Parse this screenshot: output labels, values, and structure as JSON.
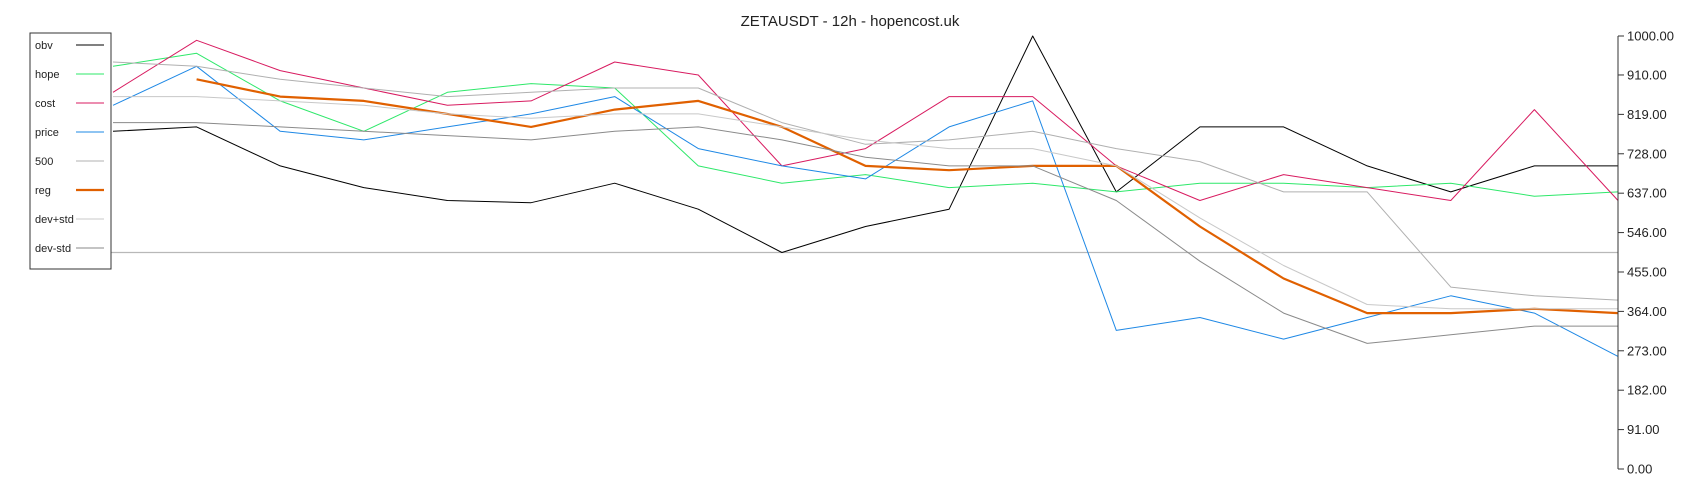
{
  "chart_data": {
    "type": "line",
    "title": "ZETAUSDT - 12h - hopencost.uk",
    "xlabel": "",
    "ylabel": "",
    "ylim": [
      0,
      1000
    ],
    "y_ticks": [
      "0.00",
      "91.00",
      "182.00",
      "273.00",
      "364.00",
      "455.00",
      "546.00",
      "637.00",
      "728.00",
      "819.00",
      "910.00",
      "1000.00"
    ],
    "y_tick_values": [
      0,
      91,
      182,
      273,
      364,
      455,
      546,
      637,
      728,
      819,
      910,
      1000
    ],
    "x": [
      0,
      20,
      40,
      60,
      80,
      100,
      120,
      140,
      160,
      180,
      200,
      220,
      240,
      260,
      280,
      300,
      320,
      340,
      360
    ],
    "horizontal_line": 500,
    "grid": false,
    "legend_position": "top-left",
    "series": [
      {
        "name": "obv",
        "color": "#000000",
        "width": 1.0,
        "values": [
          780,
          790,
          700,
          650,
          620,
          615,
          660,
          600,
          500,
          560,
          600,
          1000,
          640,
          790,
          790,
          700,
          640,
          700,
          700
        ]
      },
      {
        "name": "hope",
        "color": "#2ee86a",
        "width": 1.0,
        "values": [
          930,
          960,
          850,
          780,
          870,
          890,
          880,
          700,
          660,
          680,
          650,
          660,
          640,
          660,
          660,
          650,
          660,
          630,
          640
        ]
      },
      {
        "name": "cost",
        "color": "#d81b60",
        "width": 1.0,
        "values": [
          870,
          990,
          920,
          880,
          840,
          850,
          940,
          910,
          700,
          740,
          860,
          860,
          700,
          620,
          680,
          650,
          620,
          830,
          620
        ]
      },
      {
        "name": "price",
        "color": "#1e88e5",
        "width": 1.0,
        "values": [
          840,
          930,
          780,
          760,
          790,
          820,
          860,
          740,
          700,
          670,
          790,
          850,
          320,
          350,
          300,
          350,
          400,
          360,
          260
        ]
      },
      {
        "name": "500",
        "color": "#b0b0b0",
        "width": 1.0,
        "values": [
          940,
          930,
          900,
          880,
          860,
          870,
          880,
          880,
          800,
          750,
          760,
          780,
          740,
          710,
          640,
          640,
          420,
          400,
          390
        ]
      },
      {
        "name": "reg",
        "color": "#e06000",
        "width": 2.2,
        "values": [
          null,
          900,
          860,
          850,
          820,
          790,
          830,
          850,
          790,
          700,
          690,
          700,
          700,
          560,
          440,
          360,
          360,
          370,
          360
        ]
      },
      {
        "name": "dev+std",
        "color": "#c8c8c8",
        "width": 1.0,
        "values": [
          860,
          860,
          850,
          840,
          820,
          810,
          820,
          820,
          790,
          760,
          740,
          740,
          700,
          580,
          470,
          380,
          370,
          370,
          370
        ]
      },
      {
        "name": "dev-std",
        "color": "#8a8a8a",
        "width": 1.0,
        "values": [
          800,
          800,
          790,
          780,
          770,
          760,
          780,
          790,
          760,
          720,
          700,
          700,
          620,
          480,
          360,
          290,
          310,
          330,
          330
        ]
      }
    ]
  }
}
